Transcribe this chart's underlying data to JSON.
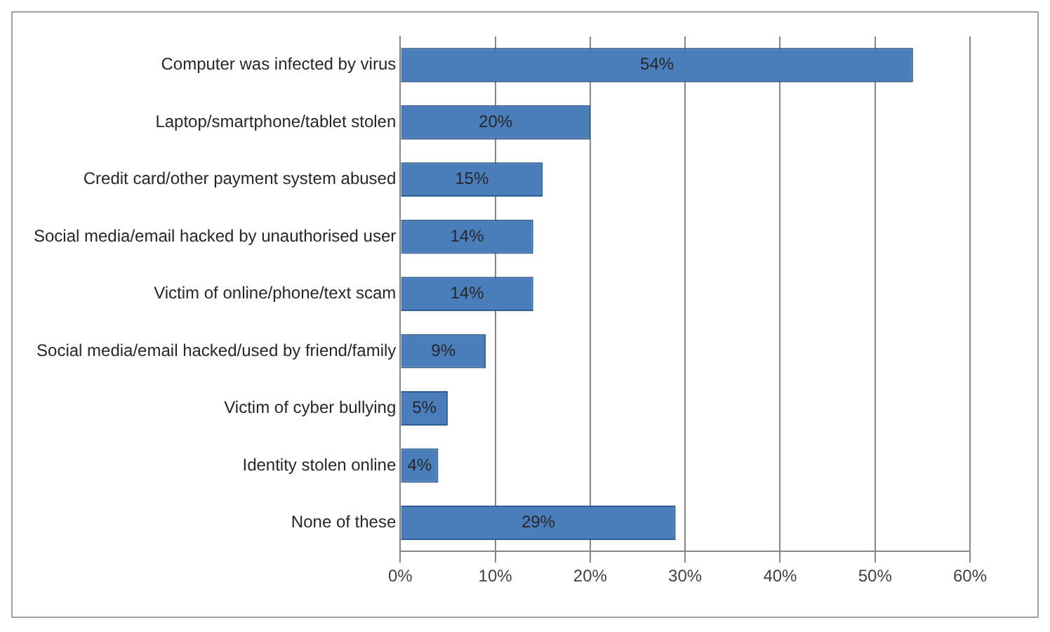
{
  "chart_data": {
    "type": "bar",
    "orientation": "horizontal",
    "categories": [
      "Computer was infected by virus",
      "Laptop/smartphone/tablet stolen",
      "Credit card/other payment system abused",
      "Social media/email hacked by unauthorised user",
      "Victim of online/phone/text scam",
      "Social media/email hacked/used by friend/family",
      "Victim of cyber bullying",
      "Identity stolen online",
      "None of these"
    ],
    "values": [
      54,
      20,
      15,
      14,
      14,
      9,
      5,
      4,
      29
    ],
    "value_labels": [
      "54%",
      "20%",
      "15%",
      "14%",
      "14%",
      "9%",
      "5%",
      "4%",
      "29%"
    ],
    "color": "#4a7ebb",
    "xlim": [
      0,
      60
    ],
    "xticks": [
      {
        "value": 0,
        "label": "0%"
      },
      {
        "value": 10,
        "label": "10%"
      },
      {
        "value": 20,
        "label": "20%"
      },
      {
        "value": 30,
        "label": "30%"
      },
      {
        "value": 40,
        "label": "40%"
      },
      {
        "value": 50,
        "label": "50%"
      },
      {
        "value": 60,
        "label": "60%"
      }
    ],
    "grid": "x",
    "legend": false
  }
}
